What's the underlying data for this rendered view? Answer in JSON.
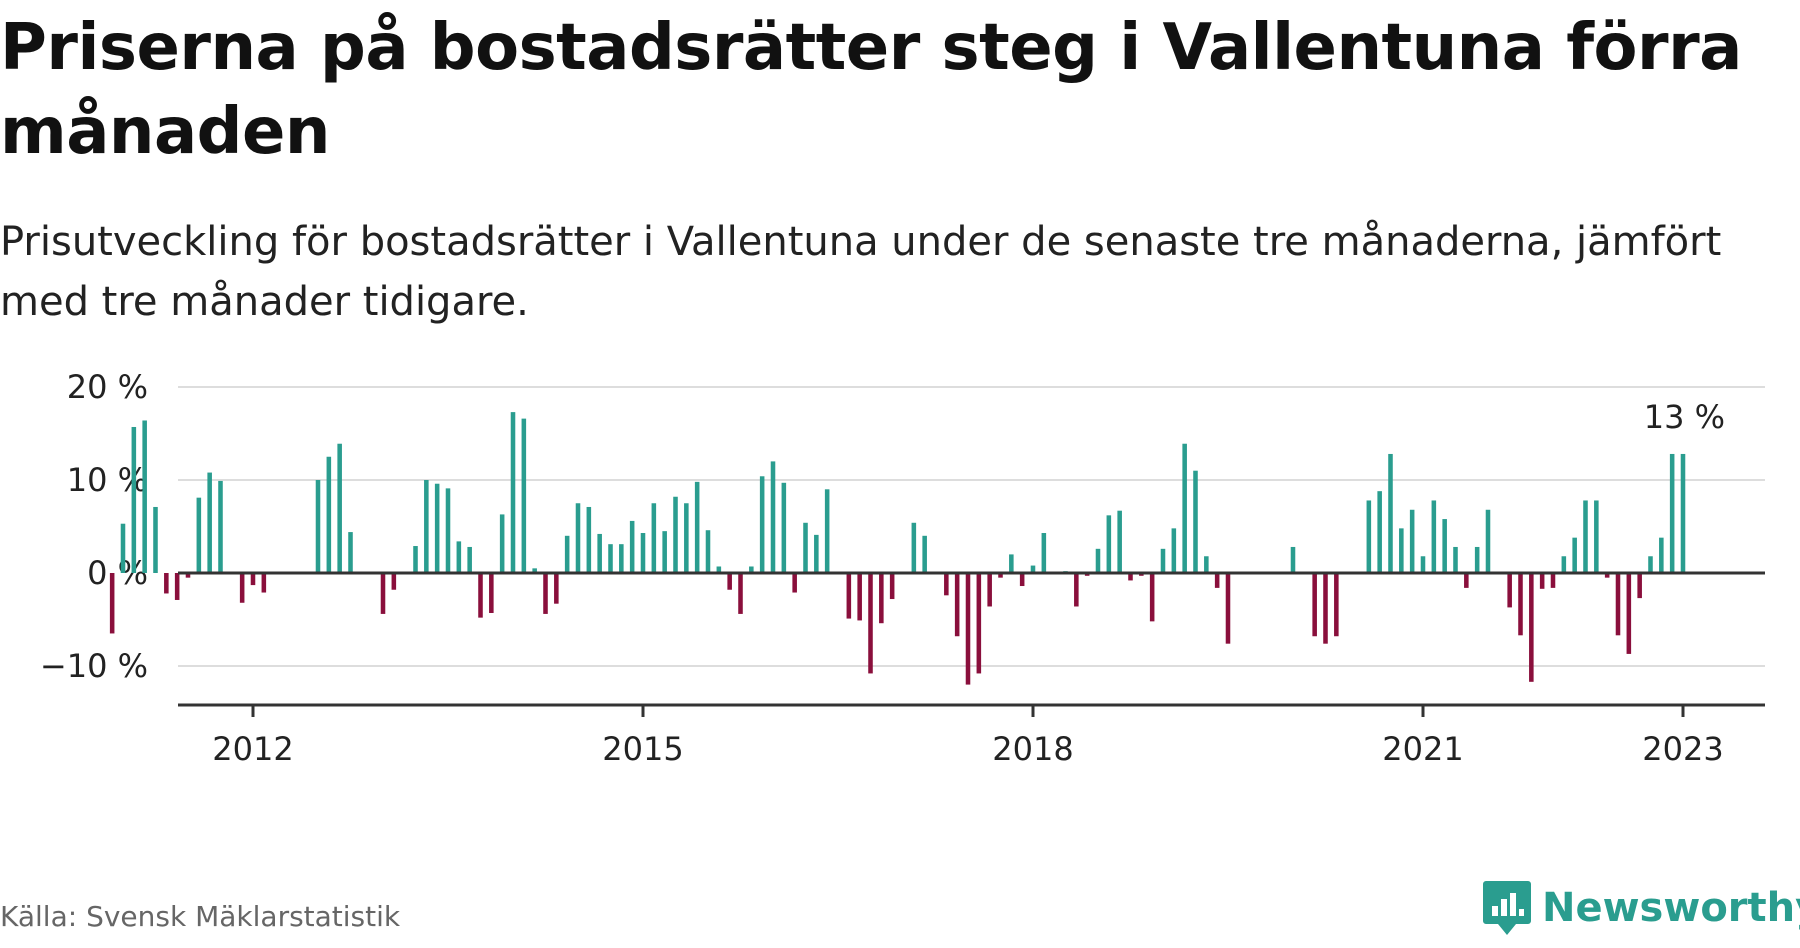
{
  "title": "Priserna på bostadsrätter steg i Vallentuna förra månaden",
  "subtitle": "Prisutveckling för bostadsrätter i Vallentuna under de senaste tre månaderna, jämfört med tre månader tidigare.",
  "source": "Källa: Svensk Mäklarstatistik",
  "brand": "Newsworthy",
  "colors": {
    "positive": "#2a9d8f",
    "negative": "#8a0f3c",
    "grid": "#dddddd",
    "axis": "#333333",
    "brand": "#2a9d8f"
  },
  "chart_data": {
    "type": "bar",
    "x_start": "2012-01",
    "x_end": "2023-01",
    "x_ticks": [
      "2012",
      "2015",
      "2018",
      "2021",
      "2023"
    ],
    "y_ticks": [
      "20 %",
      "10 %",
      "0 %",
      "−10 %"
    ],
    "ylim": [
      -14,
      20
    ],
    "annotation": "13 %",
    "grid": true,
    "values": [
      -6.5,
      5.3,
      15.7,
      16.4,
      7.1,
      -2.2,
      -2.9,
      -0.5,
      8.1,
      10.8,
      9.9,
      0,
      -3.2,
      -1.3,
      -2.1,
      0,
      0,
      0,
      0,
      10.0,
      12.5,
      13.9,
      4.4,
      0,
      0,
      -4.4,
      -1.8,
      0,
      2.9,
      10.0,
      9.6,
      9.1,
      3.4,
      2.8,
      -4.8,
      -4.3,
      6.3,
      17.3,
      16.6,
      0.5,
      -4.4,
      -3.3,
      4.0,
      7.5,
      7.1,
      4.2,
      3.1,
      3.1,
      5.6,
      4.3,
      7.5,
      4.5,
      8.2,
      7.5,
      9.8,
      4.6,
      0.7,
      -1.8,
      -4.4,
      0.7,
      10.4,
      12.0,
      9.7,
      -2.1,
      5.4,
      4.1,
      9.0,
      0,
      -4.9,
      -5.1,
      -10.8,
      -5.4,
      -2.8,
      0,
      5.4,
      4.0,
      0,
      -2.4,
      -6.8,
      -12.0,
      -10.8,
      -3.6,
      -0.5,
      2.0,
      -1.4,
      0.8,
      4.3,
      0,
      0.2,
      -3.6,
      -0.3,
      2.6,
      6.2,
      6.7,
      -0.8,
      -0.3,
      -5.2,
      2.6,
      4.8,
      13.9,
      11.0,
      1.8,
      -1.6,
      -7.6,
      0,
      0,
      0,
      0,
      0,
      2.8,
      0,
      -6.8,
      -7.6,
      -6.8,
      0,
      0,
      7.8,
      8.8,
      12.8,
      4.8,
      6.8,
      1.8,
      7.8,
      5.8,
      2.8,
      -1.6,
      2.8,
      6.8,
      0,
      -3.7,
      -6.7,
      -11.7,
      -1.7,
      -1.6,
      1.8,
      3.8,
      7.8,
      7.8,
      -0.5,
      -6.7,
      -8.7,
      -2.7,
      1.8,
      3.8,
      12.8,
      12.8
    ]
  }
}
